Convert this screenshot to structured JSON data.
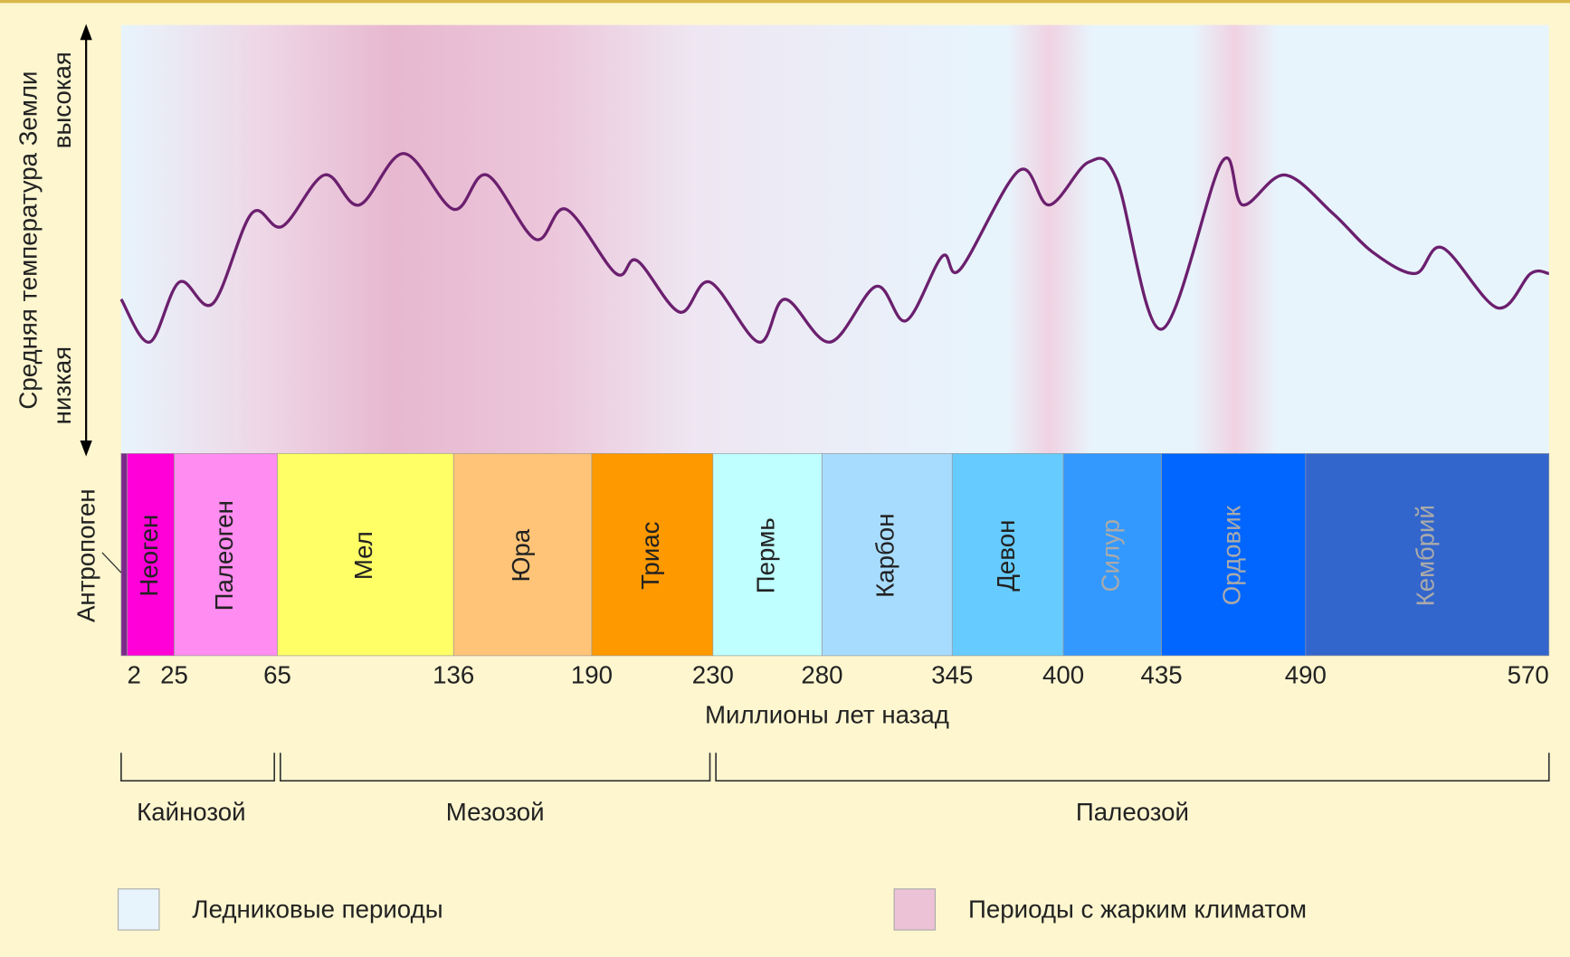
{
  "chart_data": {
    "type": "line",
    "y_label": "Средняя температура Земли",
    "y_high": "высокая",
    "y_low": "низкая",
    "x_label": "Миллионы лет назад",
    "ylim": [
      0,
      100
    ],
    "x": [
      0,
      13,
      27,
      40,
      55,
      67,
      84,
      98,
      116,
      136,
      149,
      168,
      180,
      198,
      205,
      219,
      229,
      251,
      263,
      284,
      307,
      322,
      340,
      349,
      378,
      393,
      409,
      419,
      435,
      458,
      466,
      482,
      499,
      512,
      526,
      535,
      553,
      564,
      570
    ],
    "series": [
      {
        "color": "#6b1f6e",
        "values": [
          36,
          26,
          40,
          35,
          56,
          53,
          65,
          58,
          70,
          57,
          65,
          50,
          57,
          42,
          45,
          33,
          40,
          26,
          36,
          26,
          39,
          31,
          46,
          43,
          66,
          58,
          68,
          64,
          29,
          68,
          58,
          65,
          56,
          47,
          42,
          48,
          34,
          42,
          42
        ]
      }
    ],
    "xticks": [
      2,
      25,
      65,
      136,
      190,
      230,
      280,
      345,
      400,
      435,
      490,
      570
    ],
    "periods": [
      {
        "name": "Антропоген",
        "start": 0,
        "end": 2,
        "color": "#7a2a8a"
      },
      {
        "name": "Неоген",
        "start": 2,
        "end": 25,
        "color": "#ff00d8"
      },
      {
        "name": "Палеоген",
        "start": 25,
        "end": 65,
        "color": "#ff8cf0"
      },
      {
        "name": "Мел",
        "start": 65,
        "end": 136,
        "color": "#ffff66"
      },
      {
        "name": "Юра",
        "start": 136,
        "end": 190,
        "color": "#ffc477"
      },
      {
        "name": "Триас",
        "start": 190,
        "end": 230,
        "color": "#ff9900"
      },
      {
        "name": "Пермь",
        "start": 230,
        "end": 280,
        "color": "#bfffff"
      },
      {
        "name": "Карбон",
        "start": 280,
        "end": 345,
        "color": "#a8dcff"
      },
      {
        "name": "Девон",
        "start": 345,
        "end": 400,
        "color": "#66ccff"
      },
      {
        "name": "Силур",
        "start": 400,
        "end": 435,
        "color": "#3399ff"
      },
      {
        "name": "Ордовик",
        "start": 435,
        "end": 490,
        "color": "#0066ff"
      },
      {
        "name": "Кембрий",
        "start": 490,
        "end": 570,
        "color": "#3366cc"
      }
    ],
    "eras": [
      {
        "name": "Кайнозой",
        "start": 0,
        "end": 65
      },
      {
        "name": "Мезозой",
        "start": 65,
        "end": 230
      },
      {
        "name": "Палеозой",
        "start": 230,
        "end": 570
      }
    ],
    "legend": [
      {
        "name": "Ледниковые периоды",
        "color": "#e8f4fc"
      },
      {
        "name": "Периоды с жарким климатом",
        "color": "#ecc2d6"
      }
    ]
  }
}
